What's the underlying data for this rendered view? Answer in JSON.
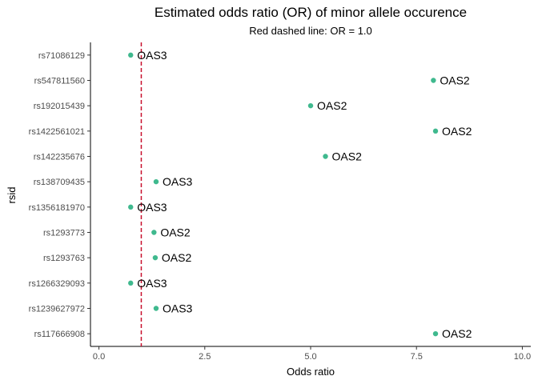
{
  "chart_data": {
    "type": "scatter",
    "title": "Estimated odds ratio (OR) of minor allele occurence",
    "subtitle": "Red dashed line: OR = 1.0",
    "xlabel": "Odds ratio",
    "ylabel": "rsid",
    "xlim": [
      -0.2,
      10.2
    ],
    "xticks": [
      "0.0",
      "2.5",
      "5.0",
      "7.5",
      "10.0"
    ],
    "xtick_values": [
      0,
      2.5,
      5,
      7.5,
      10
    ],
    "reference_line": {
      "x": 1.0,
      "color": "#c8102e",
      "style": "dashed"
    },
    "point_color": "#3fb98e",
    "grid": false,
    "points": [
      {
        "rsid": "rs71086129",
        "x": 0.75,
        "label": "OAS3"
      },
      {
        "rsid": "rs547811560",
        "x": 7.9,
        "label": "OAS2"
      },
      {
        "rsid": "rs192015439",
        "x": 5.0,
        "label": "OAS2"
      },
      {
        "rsid": "rs1422561021",
        "x": 7.95,
        "label": "OAS2"
      },
      {
        "rsid": "rs142235676",
        "x": 5.35,
        "label": "OAS2"
      },
      {
        "rsid": "rs138709435",
        "x": 1.35,
        "label": "OAS3"
      },
      {
        "rsid": "rs1356181970",
        "x": 0.75,
        "label": "OAS3"
      },
      {
        "rsid": "rs1293773",
        "x": 1.3,
        "label": "OAS2"
      },
      {
        "rsid": "rs1293763",
        "x": 1.33,
        "label": "OAS2"
      },
      {
        "rsid": "rs1266329093",
        "x": 0.75,
        "label": "OAS3"
      },
      {
        "rsid": "rs1239627972",
        "x": 1.35,
        "label": "OAS3"
      },
      {
        "rsid": "rs117666908",
        "x": 7.95,
        "label": "OAS2"
      }
    ]
  }
}
